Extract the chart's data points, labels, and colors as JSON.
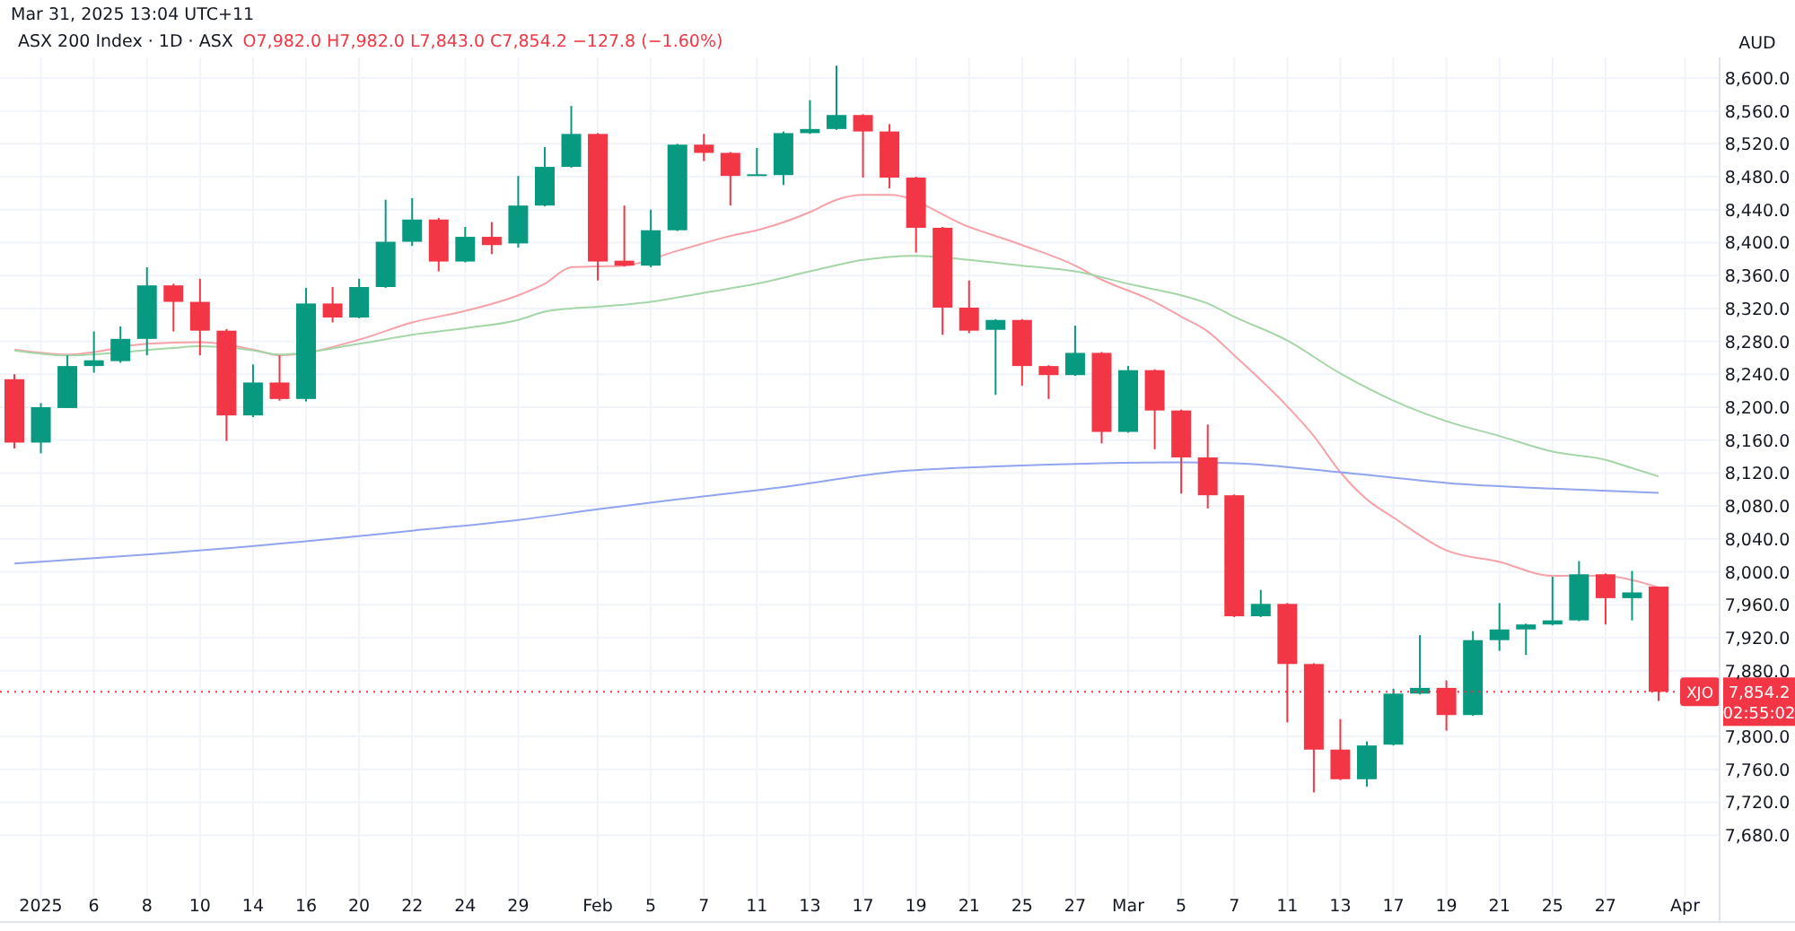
{
  "chart_data": {
    "type": "candlestick",
    "title": "ASX 200 Index · 1D · ASX",
    "subtitle": "O7,982.0 H7,982.0 L7,843.0 C7,854.2 −127.8 (−1.60%)",
    "annotations": [
      "Mar 31, 2025 13:04 UTC+11",
      "AUD",
      "02:55:02",
      "7,854.2"
    ],
    "categories": [
      null,
      "2025",
      null,
      "6",
      null,
      "8",
      null,
      "10",
      null,
      "14",
      null,
      "16",
      null,
      "20",
      null,
      "22",
      null,
      "24",
      null,
      "29",
      null,
      null,
      "Feb",
      null,
      "5",
      null,
      "7",
      null,
      "11",
      null,
      "13",
      null,
      "17",
      null,
      "19",
      null,
      "21",
      null,
      "25",
      null,
      "27",
      null,
      "Mar",
      null,
      "5",
      null,
      "7",
      null,
      "11",
      null,
      "13",
      null,
      "17",
      null,
      "19",
      null,
      "21",
      null,
      "25",
      null,
      "27",
      null,
      null,
      "Apr"
    ],
    "ohlc": [
      [
        8234,
        8240,
        8150,
        8157
      ],
      [
        8157,
        8205,
        8144,
        8200
      ],
      [
        8199,
        8263,
        8199,
        8250
      ],
      [
        8250,
        8292,
        8242,
        8257
      ],
      [
        8256,
        8298,
        8254,
        8283
      ],
      [
        8283,
        8370,
        8263,
        8348
      ],
      [
        8348,
        8350,
        8292,
        8328
      ],
      [
        8328,
        8356,
        8263,
        8293
      ],
      [
        8293,
        8295,
        8159,
        8190
      ],
      [
        8190,
        8252,
        8188,
        8230
      ],
      [
        8230,
        8263,
        8208,
        8210
      ],
      [
        8210,
        8345,
        8207,
        8326
      ],
      [
        8326,
        8346,
        8303,
        8309
      ],
      [
        8309,
        8356,
        8308,
        8346
      ],
      [
        8346,
        8452,
        8345,
        8401
      ],
      [
        8401,
        8454,
        8396,
        8428
      ],
      [
        8428,
        8430,
        8365,
        8377
      ],
      [
        8377,
        8419,
        8376,
        8407
      ],
      [
        8407,
        8425,
        8386,
        8397
      ],
      [
        8399,
        8481,
        8394,
        8445
      ],
      [
        8445,
        8516,
        8444,
        8492
      ],
      [
        8492,
        8566,
        8491,
        8532
      ],
      [
        8532,
        8533,
        8354,
        8377
      ],
      [
        8378,
        8445,
        8371,
        8372
      ],
      [
        8372,
        8440,
        8370,
        8415
      ],
      [
        8415,
        8520,
        8414,
        8519
      ],
      [
        8519,
        8532,
        8499,
        8509
      ],
      [
        8509,
        8510,
        8445,
        8481
      ],
      [
        8482,
        8515,
        8481,
        8483
      ],
      [
        8482,
        8535,
        8470,
        8533
      ],
      [
        8533,
        8573,
        8532,
        8538
      ],
      [
        8538,
        8615,
        8537,
        8555
      ],
      [
        8555,
        8556,
        8479,
        8535
      ],
      [
        8535,
        8544,
        8466,
        8479
      ],
      [
        8479,
        8480,
        8388,
        8418
      ],
      [
        8418,
        8419,
        8288,
        8321
      ],
      [
        8321,
        8354,
        8290,
        8293
      ],
      [
        8294,
        8307,
        8215,
        8306
      ],
      [
        8306,
        8307,
        8226,
        8250
      ],
      [
        8250,
        8251,
        8210,
        8239
      ],
      [
        8239,
        8299,
        8238,
        8266
      ],
      [
        8266,
        8267,
        8156,
        8170
      ],
      [
        8170,
        8250,
        8169,
        8245
      ],
      [
        8245,
        8246,
        8149,
        8196
      ],
      [
        8196,
        8197,
        8095,
        8139
      ],
      [
        8139,
        8179,
        8077,
        8093
      ],
      [
        8093,
        8094,
        7945,
        7946
      ],
      [
        7946,
        7978,
        7945,
        7961
      ],
      [
        7961,
        7962,
        7817,
        7888
      ],
      [
        7888,
        7889,
        7732,
        7784
      ],
      [
        7784,
        7821,
        7747,
        7748
      ],
      [
        7748,
        7794,
        7739,
        7789
      ],
      [
        7790,
        7858,
        7789,
        7852
      ],
      [
        7852,
        7923,
        7851,
        7859
      ],
      [
        7859,
        7868,
        7807,
        7826
      ],
      [
        7826,
        7928,
        7825,
        7917
      ],
      [
        7917,
        7962,
        7904,
        7930
      ],
      [
        7930,
        7937,
        7899,
        7936
      ],
      [
        7936,
        7994,
        7935,
        7941
      ],
      [
        7941,
        8013,
        7940,
        7997
      ],
      [
        7997,
        7998,
        7936,
        7968
      ],
      [
        7968,
        8001,
        7941,
        7975
      ],
      [
        7982,
        7982,
        7843,
        7854.2
      ],
      null
    ],
    "series": [
      {
        "type": "line",
        "color": "#f7a1a8",
        "values": [
          8270,
          null,
          8264,
          null,
          null,
          8277,
          null,
          8279,
          null,
          8270,
          8263,
          null,
          null,
          8282,
          null,
          8303,
          null,
          8317,
          null,
          8336,
          8350,
          8370,
          8371,
          8372,
          null,
          8390,
          null,
          8408,
          8415,
          null,
          8437,
          8452,
          8458,
          8458,
          null,
          null,
          8419,
          null,
          8397,
          null,
          8372,
          8355,
          null,
          8328,
          8310,
          8292,
          8263,
          null,
          8201,
          8165,
          8121,
          8088,
          8066,
          null,
          8026,
          null,
          8012,
          null,
          7995,
          null,
          7995,
          7990,
          7981,
          null
        ]
      },
      {
        "type": "line",
        "color": "#a5d6a7",
        "values": [
          8269,
          null,
          8263,
          null,
          null,
          null,
          8272,
          8274,
          null,
          8269,
          8264,
          null,
          null,
          8277,
          null,
          8288,
          null,
          8296,
          null,
          8306,
          8316,
          8320,
          8322,
          null,
          8328,
          null,
          8339,
          null,
          8350,
          null,
          8365,
          null,
          8379,
          null,
          8384,
          null,
          8379,
          null,
          8372,
          null,
          8365,
          null,
          8350,
          8343,
          8336,
          8326,
          8310,
          null,
          8281,
          null,
          8241,
          null,
          8208,
          null,
          8183,
          null,
          8165,
          null,
          8146,
          null,
          8136,
          8126,
          8116,
          null
        ]
      },
      {
        "type": "line",
        "color": "#90a4f0",
        "values": [
          8010,
          null,
          null,
          null,
          null,
          8021,
          null,
          null,
          null,
          null,
          null,
          8037,
          null,
          null,
          null,
          8050,
          null,
          null,
          null,
          8063,
          null,
          null,
          8076,
          null,
          null,
          8088,
          null,
          null,
          null,
          8103,
          null,
          null,
          null,
          8121,
          null,
          null,
          null,
          8128,
          null,
          null,
          null,
          8132,
          null,
          null,
          8133,
          null,
          8132,
          null,
          null,
          null,
          8121,
          null,
          null,
          null,
          8108,
          null,
          null,
          null,
          8101,
          null,
          null,
          null,
          8096,
          null
        ]
      }
    ],
    "ylim": [
      7605,
      8625
    ],
    "yticks": [
      {
        "value": 7680,
        "label": "7,680.0"
      },
      {
        "value": 7720,
        "label": "7,720.0"
      },
      {
        "value": 7760,
        "label": "7,760.0"
      },
      {
        "value": 7800,
        "label": "7,800.0"
      },
      {
        "value": 7880,
        "label": "7,880.0"
      },
      {
        "value": 7920,
        "label": "7,920.0"
      },
      {
        "value": 7960,
        "label": "7,960.0"
      },
      {
        "value": 8000,
        "label": "8,000.0"
      },
      {
        "value": 8040,
        "label": "8,040.0"
      },
      {
        "value": 8080,
        "label": "8,080.0"
      },
      {
        "value": 8120,
        "label": "8,120.0"
      },
      {
        "value": 8160,
        "label": "8,160.0"
      },
      {
        "value": 8200,
        "label": "8,200.0"
      },
      {
        "value": 8240,
        "label": "8,240.0"
      },
      {
        "value": 8280,
        "label": "8,280.0"
      },
      {
        "value": 8320,
        "label": "8,320.0"
      },
      {
        "value": 8360,
        "label": "8,360.0"
      },
      {
        "value": 8400,
        "label": "8,400.0"
      },
      {
        "value": 8440,
        "label": "8,440.0"
      },
      {
        "value": 8480,
        "label": "8,480.0"
      },
      {
        "value": 8520,
        "label": "8,520.0"
      },
      {
        "value": 8560,
        "label": "8,560.0"
      },
      {
        "value": 8600,
        "label": "8,600.0"
      }
    ],
    "grid": true,
    "ref_lines": [
      {
        "axis": "y",
        "value": 7854.2,
        "label": "XJO",
        "color": "#f23645",
        "line_style": "dotted"
      }
    ]
  }
}
